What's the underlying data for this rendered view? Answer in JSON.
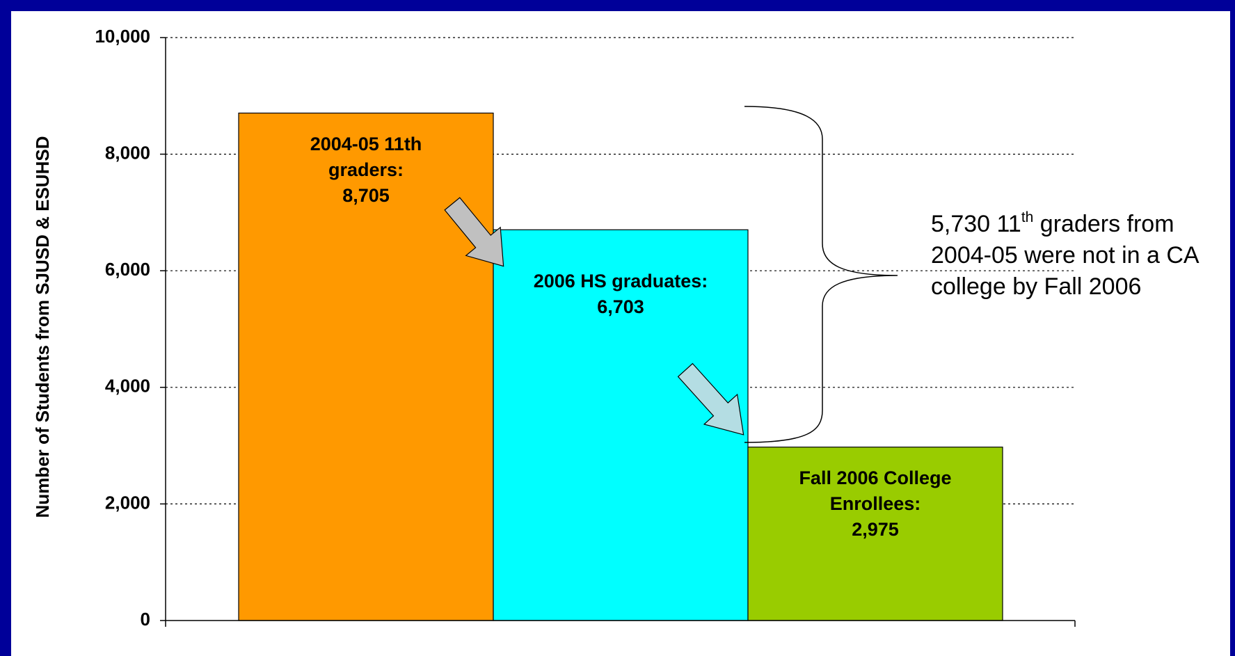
{
  "chart_data": {
    "type": "bar",
    "y_axis_label": "Number of Students from SJUSD & ESUHSD",
    "categories": [
      "2004-05 11th graders:",
      "2006 HS graduates:",
      "Fall 2006 College Enrollees:"
    ],
    "values": [
      8705,
      6703,
      2975
    ],
    "value_labels": [
      "8,705",
      "6,703",
      "2,975"
    ],
    "colors": [
      "#ff9900",
      "#00ffff",
      "#99cc00"
    ],
    "ylim": [
      0,
      10000
    ],
    "yticks": [
      0,
      {
        "value": 2000,
        "label": "2,000"
      },
      {
        "value": 4000,
        "label": "4,000"
      },
      {
        "value": 6000,
        "label": "6,000"
      },
      {
        "value": 8000,
        "label": "8,000"
      },
      {
        "value": 10000,
        "label": "10,000"
      }
    ],
    "grid": true,
    "annotation": [
      "5,730 11",
      "th",
      "graders from 2004-05 were not in a CA college by Fall 2006"
    ]
  }
}
